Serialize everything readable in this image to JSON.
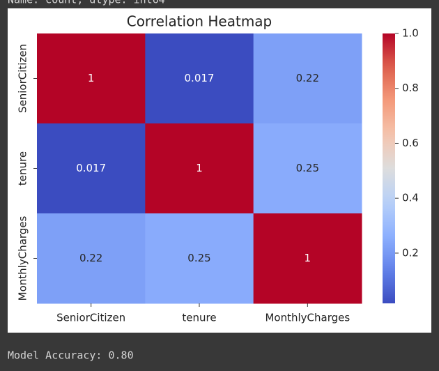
{
  "output_above": "Name: count, dtype: int64",
  "chart_data": {
    "type": "heatmap",
    "title": "Correlation Heatmap",
    "x_categories": [
      "SeniorCitizen",
      "tenure",
      "MonthlyCharges"
    ],
    "y_categories": [
      "SeniorCitizen",
      "tenure",
      "MonthlyCharges"
    ],
    "values": [
      [
        1,
        0.017,
        0.22
      ],
      [
        0.017,
        1,
        0.25
      ],
      [
        0.22,
        0.25,
        1
      ]
    ],
    "colormap": "coolwarm",
    "zlim": [
      0.017,
      1
    ],
    "zticks": [
      0.2,
      0.4,
      0.6,
      0.8,
      {
        "value": 1,
        "label": "1.0"
      }
    ]
  },
  "output_below": "Model Accuracy: 0.80"
}
